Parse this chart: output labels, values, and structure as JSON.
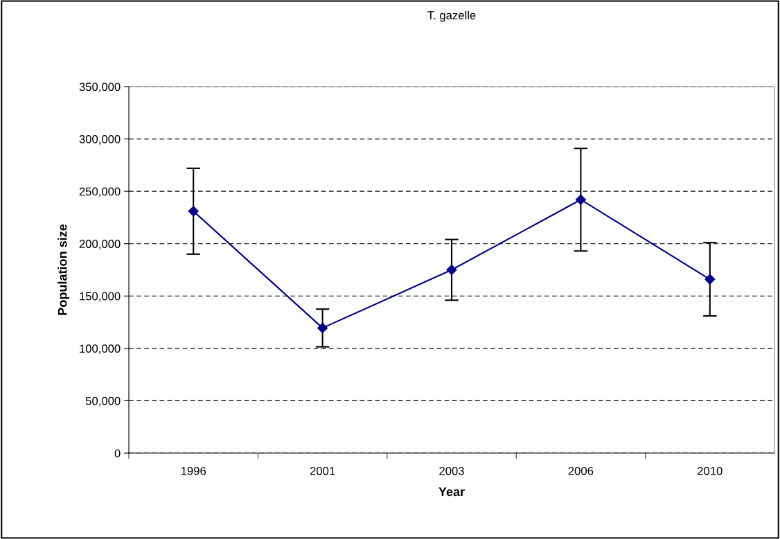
{
  "chart_data": {
    "type": "line",
    "title": "T. gazelle",
    "xlabel": "Year",
    "ylabel": "Population size",
    "categories": [
      "1996",
      "2001",
      "2003",
      "2006",
      "2010"
    ],
    "series": [
      {
        "color": "#000080",
        "values": [
          231000,
          119500,
          175000,
          242000,
          166000
        ],
        "errors": [
          41000,
          18000,
          29000,
          49000,
          35000
        ]
      }
    ],
    "ylim": [
      0,
      350000
    ],
    "yticks": [
      {
        "value": 0,
        "label": "0"
      },
      {
        "value": 50000,
        "label": "50,000"
      },
      {
        "value": 100000,
        "label": "100,000"
      },
      {
        "value": 150000,
        "label": "150,000"
      },
      {
        "value": 200000,
        "label": "200,000"
      },
      {
        "value": 250000,
        "label": "250,000"
      },
      {
        "value": 300000,
        "label": "300,000"
      },
      {
        "value": 350000,
        "label": "350,000"
      }
    ],
    "grid": "y",
    "marker": "diamond",
    "line_style": "solid",
    "legend": false
  }
}
